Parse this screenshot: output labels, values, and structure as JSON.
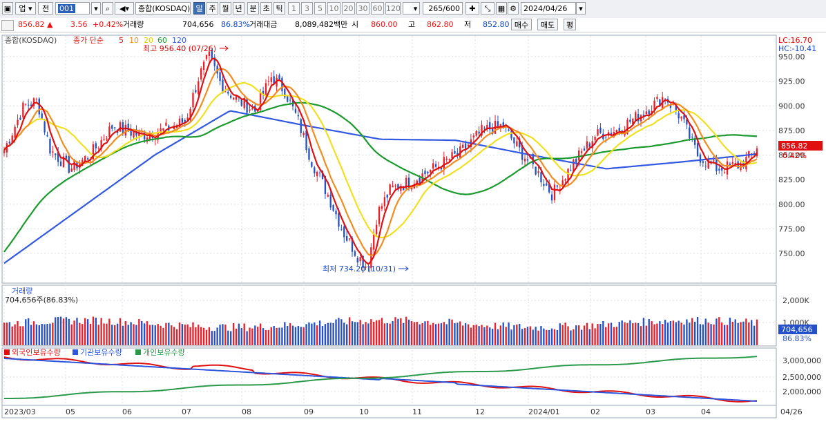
{
  "toolbar": {
    "market": "업",
    "period_btn": "전",
    "code": "001",
    "index_name": "종합(KOSDAQ)",
    "periods": [
      "일",
      "주",
      "월",
      "년",
      "분",
      "초",
      "틱"
    ],
    "active_period": "일",
    "intervals": [
      "1",
      "3",
      "5",
      "10",
      "20",
      "30",
      "60",
      "120"
    ],
    "count": "265/600",
    "date": "2024/04/26"
  },
  "info": {
    "price": "856.82",
    "change": "3.56",
    "change_pct": "+0.42%",
    "volume_label": "거래량",
    "volume": "704,656",
    "volume_ratio": "86.83%",
    "amount_label": "거래대금",
    "amount": "8,089,482백만",
    "open_label": "시",
    "open": "860.00",
    "high_label": "고",
    "high": "862.80",
    "low_label": "저",
    "low": "852.80",
    "buy_label": "매수",
    "sell_label": "매도",
    "avg_label": "평"
  },
  "chart": {
    "name": "종합(KOSDAQ)",
    "ma_title": "종가 단순",
    "ma_periods": [
      "5",
      "10",
      "20",
      "60",
      "120"
    ],
    "lc": "LC:16.70",
    "hc": "HC:-10.41",
    "high_note": "최고 956.40 (07/26)",
    "low_note": "최저 734.20 (10/31)",
    "price_label": "856.82",
    "pct_label": "0.42%",
    "volume_title": "거래량",
    "volume_note": "704,656주(86.83%)",
    "volume_box": "704,656",
    "volume_pct": "86.83%",
    "flow_legend": [
      "외국인보유수량",
      "기관보유수량",
      "개인보유수량"
    ],
    "x_ticks": [
      "2023/03",
      "05",
      "06",
      "07",
      "08",
      "09",
      "10",
      "11",
      "12",
      "2024/01",
      "02",
      "03",
      "04",
      "04/26"
    ],
    "price_ticks": [
      "950.00",
      "925.00",
      "900.00",
      "875.00",
      "850.00",
      "825.00",
      "800.00",
      "775.00",
      "750.00"
    ],
    "volume_ticks": [
      "2,000K",
      "1,000K"
    ],
    "flow_ticks": [
      "3,000,000",
      "2,500,000",
      "2,000,000"
    ],
    "colors": {
      "up": "#e8202a",
      "down": "#2451c9",
      "ma5": "#dd1111",
      "ma10": "#f28c1e",
      "ma20": "#f0e020",
      "ma60": "#1a9a2c",
      "ma120": "#3158e0",
      "foreign": "#e01010",
      "institution": "#2a56e0",
      "individual": "#2a9a4a"
    }
  },
  "chart_data": {
    "type": "candlestick",
    "title": "종합(KOSDAQ)",
    "x_range": [
      "2023/03",
      "2024/04/26"
    ],
    "ylim": [
      735,
      958
    ],
    "series": [
      {
        "name": "5",
        "x": [
          "2023/03",
          "04",
          "05",
          "06",
          "07",
          "07/26",
          "08",
          "09",
          "10",
          "10/31",
          "11",
          "12",
          "2024/01",
          "02",
          "03",
          "04",
          "04/26"
        ],
        "values": [
          855,
          905,
          838,
          880,
          885,
          945,
          905,
          930,
          818,
          740,
          822,
          850,
          875,
          800,
          875,
          918,
          851
        ]
      },
      {
        "name": "120",
        "x": [
          "2023/03",
          "05",
          "07",
          "09",
          "11",
          "12",
          "2024/01",
          "02",
          "03",
          "04",
          "04/26"
        ],
        "values": [
          740,
          795,
          850,
          895,
          880,
          866,
          865,
          850,
          836,
          843,
          851
        ]
      }
    ],
    "last_close": 856.82,
    "high": 956.4,
    "low": 734.2,
    "volume_last": 704656
  }
}
